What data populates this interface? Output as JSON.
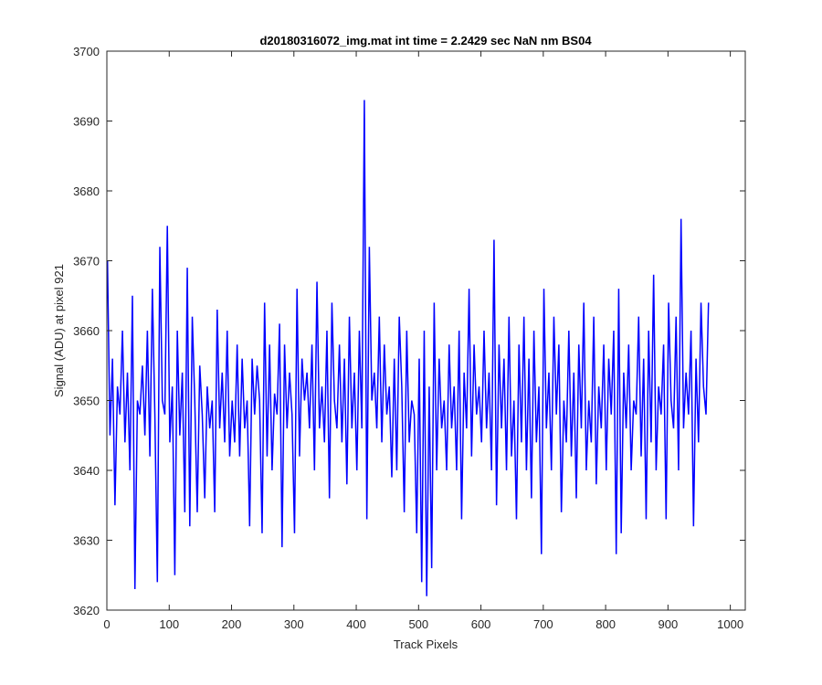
{
  "chart_data": {
    "type": "line",
    "title": "d20180316072_img.mat int time = 2.2429 sec  NaN nm BS04",
    "xlabel": "Track Pixels",
    "ylabel": "Signal (ADU) at pixel 921",
    "xlim": [
      0,
      1024
    ],
    "ylim": [
      3620,
      3700
    ],
    "xticks": [
      0,
      100,
      200,
      300,
      400,
      500,
      600,
      700,
      800,
      900,
      1000
    ],
    "yticks": [
      3620,
      3630,
      3640,
      3650,
      3660,
      3670,
      3680,
      3690,
      3700
    ],
    "grid": false,
    "legend": "none",
    "line_color": "#0000ff",
    "series": [
      {
        "points_step": 4,
        "x_start": 1,
        "values": [
          3670,
          3645,
          3656,
          3635,
          3652,
          3648,
          3660,
          3644,
          3654,
          3640,
          3665,
          3623,
          3650,
          3648,
          3655,
          3645,
          3660,
          3642,
          3666,
          3648,
          3624,
          3672,
          3650,
          3648,
          3675,
          3644,
          3652,
          3625,
          3660,
          3645,
          3654,
          3634,
          3669,
          3632,
          3662,
          3650,
          3634,
          3655,
          3648,
          3636,
          3652,
          3646,
          3650,
          3634,
          3663,
          3646,
          3654,
          3644,
          3660,
          3642,
          3650,
          3644,
          3658,
          3642,
          3656,
          3646,
          3650,
          3632,
          3656,
          3648,
          3655,
          3650,
          3631,
          3664,
          3642,
          3658,
          3640,
          3651,
          3648,
          3661,
          3629,
          3658,
          3646,
          3654,
          3648,
          3631,
          3666,
          3642,
          3656,
          3650,
          3654,
          3646,
          3658,
          3640,
          3667,
          3646,
          3652,
          3644,
          3660,
          3636,
          3664,
          3650,
          3646,
          3658,
          3644,
          3656,
          3638,
          3662,
          3646,
          3654,
          3640,
          3660,
          3646,
          3693,
          3633,
          3672,
          3650,
          3654,
          3646,
          3662,
          3644,
          3658,
          3648,
          3652,
          3639,
          3656,
          3640,
          3662,
          3652,
          3634,
          3660,
          3644,
          3650,
          3648,
          3631,
          3656,
          3624,
          3660,
          3622,
          3652,
          3626,
          3664,
          3640,
          3656,
          3646,
          3650,
          3640,
          3658,
          3646,
          3652,
          3640,
          3660,
          3633,
          3654,
          3646,
          3666,
          3642,
          3658,
          3648,
          3652,
          3644,
          3660,
          3646,
          3654,
          3640,
          3673,
          3635,
          3658,
          3646,
          3656,
          3640,
          3662,
          3642,
          3650,
          3633,
          3658,
          3644,
          3662,
          3640,
          3656,
          3636,
          3660,
          3644,
          3652,
          3628,
          3666,
          3646,
          3654,
          3640,
          3662,
          3648,
          3658,
          3634,
          3650,
          3644,
          3660,
          3642,
          3654,
          3636,
          3658,
          3646,
          3664,
          3640,
          3650,
          3644,
          3662,
          3638,
          3652,
          3646,
          3658,
          3640,
          3656,
          3648,
          3660,
          3628,
          3666,
          3631,
          3654,
          3646,
          3658,
          3640,
          3650,
          3648,
          3662,
          3642,
          3656,
          3633,
          3660,
          3644,
          3668,
          3640,
          3652,
          3648,
          3658,
          3633,
          3664,
          3650,
          3646,
          3662,
          3640,
          3676,
          3646,
          3654,
          3648,
          3660,
          3632,
          3656,
          3644,
          3664,
          3652,
          3648,
          3664
        ]
      }
    ]
  }
}
